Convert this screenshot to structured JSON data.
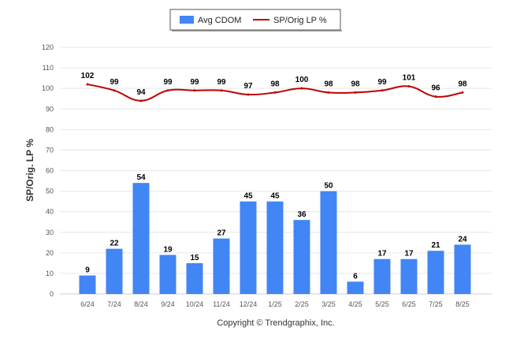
{
  "chart_data": {
    "type": "bar",
    "categories": [
      "6/24",
      "7/24",
      "8/24",
      "9/24",
      "10/24",
      "11/24",
      "12/24",
      "1/25",
      "2/25",
      "3/25",
      "4/25",
      "5/25",
      "6/25",
      "7/25",
      "8/25"
    ],
    "series": [
      {
        "name": "Avg CDOM",
        "type": "bar",
        "color": "#4285f4",
        "values": [
          9,
          22,
          54,
          19,
          15,
          27,
          45,
          45,
          36,
          50,
          6,
          17,
          17,
          21,
          24
        ]
      },
      {
        "name": "SP/Orig LP %",
        "type": "line",
        "color": "#c00000",
        "values": [
          102,
          99,
          94,
          99,
          99,
          99,
          97,
          98,
          100,
          98,
          98,
          99,
          101,
          96,
          98
        ]
      }
    ],
    "ylabel": "SP/Orig. LP %",
    "ylim": [
      0,
      120
    ],
    "yticks": [
      0,
      10,
      20,
      30,
      40,
      50,
      60,
      70,
      80,
      90,
      100,
      110,
      120
    ],
    "grid": true,
    "legend": "top-center"
  },
  "footer": {
    "copyright": "Copyright © Trendgraphix, Inc."
  }
}
